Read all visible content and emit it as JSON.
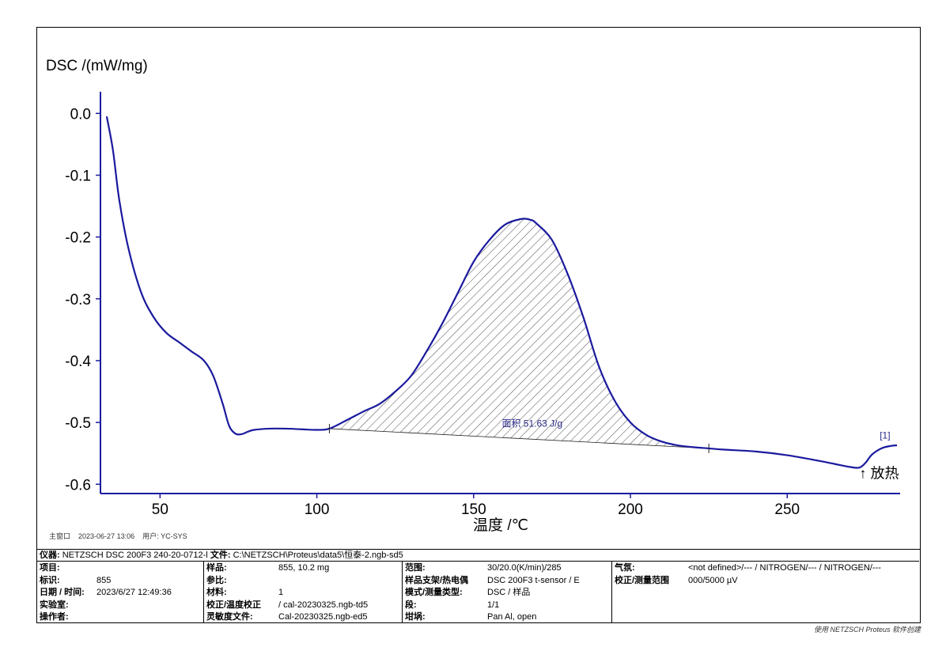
{
  "chart_data": {
    "type": "line",
    "ylabel": "DSC /(mW/mg)",
    "xlabel": "温度 /℃",
    "xlim": [
      31,
      286
    ],
    "ylim": [
      -0.615,
      0.035
    ],
    "xticks": [
      50,
      100,
      150,
      200,
      250
    ],
    "yticks": [
      0.0,
      -0.1,
      -0.2,
      -0.3,
      -0.4,
      -0.5,
      -0.6
    ],
    "ytick_labels": [
      "0.0",
      "-0.1",
      "-0.2",
      "-0.3",
      "-0.4",
      "-0.5",
      "-0.6"
    ],
    "series": [
      {
        "color": "#1a1a9e",
        "x": [
          33,
          35,
          37,
          40,
          44,
          48,
          52,
          56,
          60,
          64,
          67,
          70,
          72,
          74,
          76,
          78,
          80,
          85,
          90,
          95,
          100,
          104,
          110,
          115,
          120,
          125,
          130,
          135,
          140,
          145,
          150,
          155,
          160,
          165,
          168,
          170,
          175,
          180,
          185,
          190,
          195,
          200,
          205,
          210,
          215,
          220,
          225,
          230,
          240,
          250,
          260,
          265,
          270,
          273,
          275,
          277,
          280,
          283,
          285
        ],
        "y": [
          -0.005,
          -0.06,
          -0.14,
          -0.22,
          -0.29,
          -0.33,
          -0.355,
          -0.37,
          -0.385,
          -0.4,
          -0.425,
          -0.47,
          -0.505,
          -0.518,
          -0.519,
          -0.515,
          -0.512,
          -0.51,
          -0.51,
          -0.511,
          -0.512,
          -0.51,
          -0.495,
          -0.482,
          -0.47,
          -0.45,
          -0.425,
          -0.385,
          -0.34,
          -0.29,
          -0.24,
          -0.205,
          -0.18,
          -0.171,
          -0.172,
          -0.178,
          -0.205,
          -0.26,
          -0.33,
          -0.41,
          -0.465,
          -0.5,
          -0.52,
          -0.531,
          -0.537,
          -0.54,
          -0.542,
          -0.544,
          -0.547,
          -0.553,
          -0.562,
          -0.567,
          -0.572,
          -0.573,
          -0.565,
          -0.552,
          -0.542,
          -0.538,
          -0.537
        ]
      }
    ],
    "integration": {
      "label": "面积 51.63 J/g",
      "start": [
        104,
        -0.51
      ],
      "end": [
        225,
        -0.542
      ]
    },
    "annotations": {
      "curve_tag": "[1]",
      "exo": "↑ 放热"
    }
  },
  "meta_left": {
    "main_window": "主窗口",
    "timestamp": "2023-06-27 13:06",
    "user_label": "用户:",
    "user": "YC-SYS"
  },
  "info": {
    "instrument_label": "仪器:",
    "instrument": "NETZSCH DSC 200F3 240-20-0712-l",
    "file_label": "文件:",
    "file": "C:\\NETZSCH\\Proteus\\data5\\恒泰-2.ngb-sd5",
    "col1": [
      {
        "k": "项目:",
        "v": ""
      },
      {
        "k": "标识:",
        "v": "855"
      },
      {
        "k": "日期 / 时间:",
        "v": "2023/6/27 12:49:36"
      },
      {
        "k": "实验室:",
        "v": ""
      },
      {
        "k": "操作者:",
        "v": ""
      }
    ],
    "col2": [
      {
        "k": "样品:",
        "v": "855, 10.2 mg"
      },
      {
        "k": "参比:",
        "v": ""
      },
      {
        "k": "材料:",
        "v": "1"
      },
      {
        "k": "校正/温度校正",
        "v": "/ cal-20230325.ngb-td5"
      },
      {
        "k": "灵敏度文件:",
        "v": "Cal-20230325.ngb-ed5"
      }
    ],
    "col3": [
      {
        "k": "范围:",
        "v": "30/20.0(K/min)/285"
      },
      {
        "k": "样品支架/热电偶",
        "v": "DSC 200F3 t-sensor / E"
      },
      {
        "k": "模式/测量类型:",
        "v": "DSC / 样品"
      },
      {
        "k": "段:",
        "v": "1/1"
      },
      {
        "k": "坩埚:",
        "v": "Pan Al, open"
      }
    ],
    "col4": [
      {
        "k": "气氛:",
        "v": "<not defined>/--- / NITROGEN/--- / NITROGEN/---"
      },
      {
        "k": "校正/测量范围",
        "v": "000/5000 µV"
      }
    ]
  },
  "footer": "使用 NETZSCH Proteus 软件创建"
}
